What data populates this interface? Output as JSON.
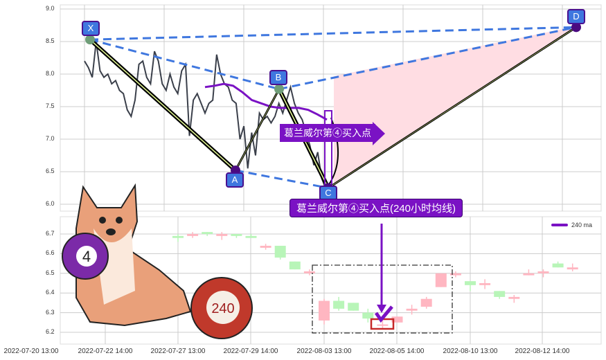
{
  "chart_data": [
    {
      "type": "line",
      "panel": "top",
      "ylim": [
        5.95,
        9.05
      ],
      "yticks": [
        "9.0",
        "8.5",
        "8.0",
        "7.5",
        "7.0",
        "6.5",
        "6.0"
      ],
      "grid": true,
      "price_series": [
        8.2,
        8.1,
        7.95,
        8.5,
        8.05,
        7.95,
        8.0,
        7.85,
        7.9,
        7.75,
        7.7,
        7.45,
        7.35,
        7.6,
        8.15,
        8.2,
        7.95,
        7.85,
        8.35,
        8.2,
        7.85,
        7.75,
        8.0,
        7.8,
        7.7,
        8.05,
        8.15,
        7.05,
        7.6,
        7.7,
        7.55,
        7.4,
        7.55,
        7.6,
        8.3,
        8.0,
        7.85,
        7.8,
        7.6,
        7.55,
        7.0,
        7.2,
        6.55,
        7.1,
        6.75,
        7.4,
        7.3,
        7.35,
        7.25,
        7.35,
        7.55,
        7.4,
        7.6,
        7.8,
        7.55,
        7.4,
        7.3,
        7.1,
        6.9,
        6.6,
        6.8,
        6.4,
        6.25
      ],
      "ma240": [
        7.8,
        7.82,
        7.85,
        7.82,
        7.72,
        7.6,
        7.55,
        7.5,
        7.48,
        7.48,
        7.48,
        7.45,
        7.38,
        7.3
      ],
      "pattern_points": [
        {
          "label": "X",
          "value": 8.53
        },
        {
          "label": "A",
          "value": 6.52
        },
        {
          "label": "B",
          "value": 7.77
        },
        {
          "label": "C",
          "value": 6.25
        },
        {
          "label": "D",
          "value": 8.72
        }
      ],
      "colors": {
        "price": "#3a3f4a",
        "ma": "#7a12c4",
        "dashed": "#3f77df",
        "fill": "#ffdde3",
        "pattern_line": "#000000"
      }
    },
    {
      "type": "candlestick",
      "panel": "bottom",
      "ylim": [
        6.16,
        6.78
      ],
      "yticks": [
        "6.7",
        "6.6",
        "6.5",
        "6.4",
        "6.3",
        "6.2"
      ],
      "xticks": [
        "2022-07-20 13:00",
        "2022-07-22 14:00",
        "2022-07-27 13:00",
        "2022-07-29 14:00",
        "2022-08-03 13:00",
        "2022-08-05 14:00",
        "2022-08-10 13:00",
        "2022-08-12 14:00"
      ],
      "legend": "240 ma",
      "legend_position": "top-right",
      "candles": [
        [
          6.69,
          6.68,
          6.7,
          6.66
        ],
        [
          6.69,
          6.7,
          6.71,
          6.68
        ],
        [
          6.71,
          6.7,
          6.71,
          6.69
        ],
        [
          6.69,
          6.7,
          6.71,
          6.67
        ],
        [
          6.7,
          6.69,
          6.7,
          6.68
        ],
        [
          6.69,
          6.68,
          6.7,
          6.68
        ],
        [
          6.63,
          6.64,
          6.65,
          6.62
        ],
        [
          6.64,
          6.58,
          6.64,
          6.57
        ],
        [
          6.56,
          6.52,
          6.56,
          6.52
        ],
        [
          6.5,
          6.51,
          6.52,
          6.49
        ],
        [
          6.26,
          6.36,
          6.37,
          6.24
        ],
        [
          6.36,
          6.32,
          6.38,
          6.31
        ],
        [
          6.35,
          6.31,
          6.35,
          6.31
        ],
        [
          6.3,
          6.27,
          6.32,
          6.25
        ],
        [
          6.24,
          6.24,
          6.26,
          6.22
        ],
        [
          6.25,
          6.28,
          6.28,
          6.25
        ],
        [
          6.31,
          6.32,
          6.34,
          6.29
        ],
        [
          6.33,
          6.37,
          6.38,
          6.32
        ],
        [
          6.43,
          6.5,
          6.5,
          6.43
        ],
        [
          6.49,
          6.5,
          6.51,
          6.48
        ],
        [
          6.46,
          6.44,
          6.46,
          6.41
        ],
        [
          6.44,
          6.45,
          6.47,
          6.42
        ],
        [
          6.41,
          6.38,
          6.41,
          6.37
        ],
        [
          6.37,
          6.38,
          6.39,
          6.35
        ],
        [
          6.49,
          6.5,
          6.52,
          6.49
        ],
        [
          6.5,
          6.51,
          6.52,
          6.48
        ],
        [
          6.55,
          6.53,
          6.56,
          6.53
        ],
        [
          6.52,
          6.53,
          6.55,
          6.51
        ]
      ],
      "colors": {
        "up": "#ffb6c1",
        "down": "#b8f5b8",
        "highlight_box": "#c62828"
      }
    }
  ],
  "annotations": {
    "arrow_label": "葛兰威尔第④买入点",
    "box_label": "葛兰威尔第④买入点(240小时均线)",
    "ball_number_left": "4",
    "ball_number_right": "240"
  }
}
